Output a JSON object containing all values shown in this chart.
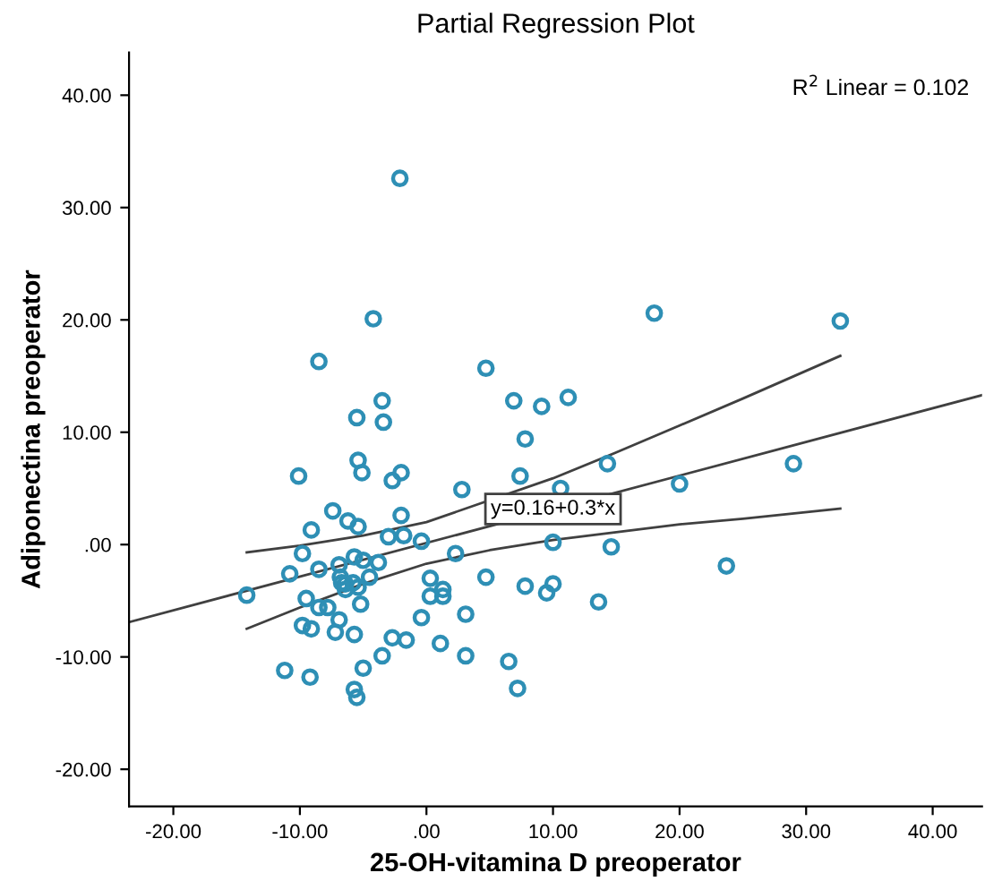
{
  "chart_data": {
    "type": "scatter",
    "title": "Partial Regression Plot",
    "xlabel": "25-OH-vitamina D preoperator",
    "ylabel": "Adiponectina preoperator",
    "xlim": [
      -23.5,
      43.9
    ],
    "ylim": [
      -23.3,
      43.8
    ],
    "xticks": [
      {
        "value": -20,
        "label": "-20.00"
      },
      {
        "value": -10,
        "label": "-10.00"
      },
      {
        "value": 0,
        "label": ".00"
      },
      {
        "value": 10,
        "label": "10.00"
      },
      {
        "value": 20,
        "label": "20.00"
      },
      {
        "value": 30,
        "label": "30.00"
      },
      {
        "value": 40,
        "label": "40.00"
      }
    ],
    "yticks": [
      {
        "value": -20,
        "label": "-20.00"
      },
      {
        "value": -10,
        "label": "-10.00"
      },
      {
        "value": 0,
        "label": ".00"
      },
      {
        "value": 10,
        "label": "10.00"
      },
      {
        "value": 20,
        "label": "20.00"
      },
      {
        "value": 30,
        "label": "30.00"
      },
      {
        "value": 40,
        "label": "40.00"
      }
    ],
    "grid": false,
    "annotations": [
      "R$^{2}$ Linear = 0.102",
      {
        "text": "y=0.16+0.3*x",
        "x": 10,
        "y": 3.16
      }
    ],
    "series": [
      {
        "color": "#2e8fb5",
        "marker": "circle",
        "x": [
          -2.1,
          -4.2,
          -8.5,
          4.7,
          6.9,
          9.1,
          -3.5,
          -5.5,
          -3.4,
          7.8,
          18,
          32.7,
          11.2,
          14.3,
          20,
          29,
          10.6,
          10,
          14.6,
          23.7,
          7.8,
          10,
          9.5,
          13.6,
          7.4,
          -10.1,
          -5.4,
          -5.1,
          -2.7,
          -2,
          2.8,
          -7.4,
          -6.2,
          -5.4,
          -9.1,
          -2,
          -3,
          -1.8,
          -0.4,
          -9.8,
          2.3,
          -5.7,
          -5,
          -3.8,
          -6.9,
          -8.5,
          -10.8,
          -6.8,
          -4.5,
          4.7,
          -6.7,
          -6.4,
          -5.8,
          -6.4,
          -5.4,
          0.3,
          1.3,
          1.3,
          0.3,
          -14.2,
          -9.5,
          -8.5,
          -7.8,
          -5.2,
          -6.9,
          -9.8,
          -9.1,
          -7.2,
          -5.7,
          -0.4,
          3.1,
          -2.7,
          -1.6,
          1.1,
          -3.5,
          3.1,
          6.5,
          -11.2,
          -9.2,
          -5,
          7.2,
          -5.7,
          -5.5
        ],
        "values": [
          32.6,
          20.1,
          16.3,
          15.7,
          12.8,
          12.3,
          12.8,
          11.3,
          10.9,
          9.4,
          20.6,
          19.9,
          13.1,
          7.2,
          5.4,
          7.2,
          5,
          0.2,
          -0.2,
          -1.9,
          -3.7,
          -3.5,
          -4.3,
          -5.1,
          6.1,
          6.1,
          7.5,
          6.4,
          5.7,
          6.4,
          4.9,
          3,
          2.1,
          1.6,
          1.3,
          2.6,
          0.7,
          0.8,
          0.3,
          -0.8,
          -0.8,
          -1.1,
          -1.4,
          -1.6,
          -1.8,
          -2.2,
          -2.6,
          -2.9,
          -2.9,
          -2.9,
          -3.4,
          -3.5,
          -3.4,
          -4,
          -3.8,
          -3,
          -4,
          -4.6,
          -4.6,
          -4.5,
          -4.8,
          -5.6,
          -5.6,
          -5.3,
          -6.7,
          -7.2,
          -7.5,
          -7.8,
          -8,
          -6.5,
          -6.2,
          -8.3,
          -8.5,
          -8.8,
          -9.9,
          -9.9,
          -10.4,
          -11.2,
          -11.8,
          -11,
          -12.8,
          -12.9,
          -13.6
        ]
      },
      {
        "type": "line",
        "color": "#404040",
        "marker": "none",
        "x": [
          -23.5,
          43.9
        ],
        "values": [
          -6.9,
          13.3
        ]
      },
      {
        "type": "line",
        "color": "#404040",
        "marker": "none",
        "x": [
          -14.2,
          -10,
          -5,
          0,
          10,
          15,
          20,
          25,
          32.7
        ],
        "values": [
          -0.7,
          -0.1,
          0.8,
          2.0,
          5.9,
          8.2,
          10.6,
          13.0,
          16.8
        ]
      },
      {
        "type": "line",
        "color": "#404040",
        "marker": "none",
        "x": [
          -14.2,
          -10,
          -5,
          0,
          5,
          10,
          15,
          20,
          25,
          32.7
        ],
        "values": [
          -7.5,
          -5.6,
          -3.5,
          -1.7,
          -0.5,
          0.4,
          1.1,
          1.8,
          2.3,
          3.2
        ]
      }
    ]
  }
}
